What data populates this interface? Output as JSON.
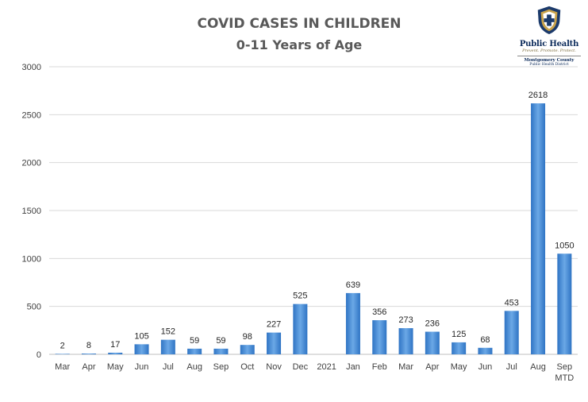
{
  "logo": {
    "name": "Public Health",
    "tagline": "Prevent. Promote. Protect.",
    "county": "Montgomery County",
    "district": "Public Health District",
    "colors": {
      "shield_navy": "#1b3a6b",
      "shield_gold": "#c9a24a"
    }
  },
  "chart_data": {
    "type": "bar",
    "title": "COVID CASES IN CHILDREN",
    "subtitle": "0-11 Years of Age",
    "xlabel": "",
    "ylabel": "",
    "ylim": [
      0,
      3000
    ],
    "yticks": [
      "0",
      "500",
      "1000",
      "1500",
      "2000",
      "2500",
      "3000"
    ],
    "grid": true,
    "legend": "none",
    "bar_color": "#4a8fd6",
    "categories": [
      "Mar",
      "Apr",
      "May",
      "Jun",
      "Jul",
      "Aug",
      "Sep",
      "Oct",
      "Nov",
      "Dec",
      "2021",
      "Jan",
      "Feb",
      "Mar",
      "Apr",
      "May",
      "Jun",
      "Jul",
      "Aug",
      "Sep MTD"
    ],
    "values": [
      2,
      8,
      17,
      105,
      152,
      59,
      59,
      98,
      227,
      525,
      null,
      639,
      356,
      273,
      236,
      125,
      68,
      453,
      2618,
      1050
    ],
    "data_labels": [
      "2",
      "8",
      "17",
      "105",
      "152",
      "59",
      "59",
      "98",
      "227",
      "525",
      "",
      "639",
      "356",
      "273",
      "236",
      "125",
      "68",
      "453",
      "2618",
      "1050"
    ]
  }
}
